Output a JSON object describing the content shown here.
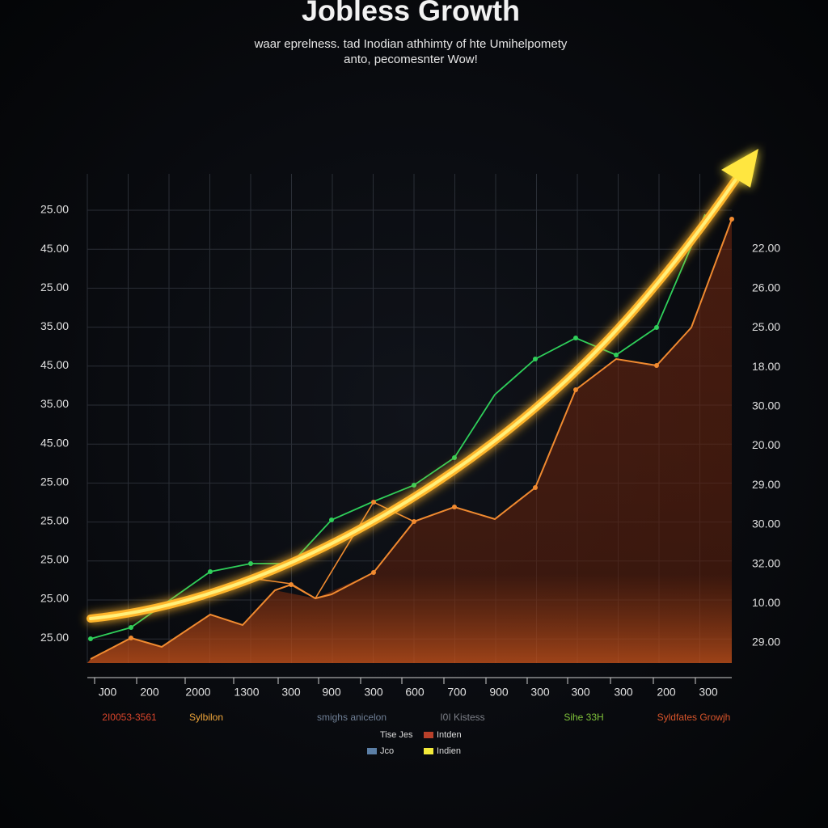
{
  "header": {
    "title": "Jobless Growth",
    "subtitle": [
      "waar eprelness. tad Inodian athhimty of hte Umihelpomety",
      "anto, pecomesnter Wow!"
    ]
  },
  "axes": {
    "left": [
      "25.00",
      "45.00",
      "25.00",
      "35.00",
      "45.00",
      "35.00",
      "45.00",
      "25.00",
      "25.00",
      "25.00",
      "25.00",
      "25.00"
    ],
    "right": [
      "22.00",
      "26.00",
      "25.00",
      "18.00",
      "30.00",
      "20.00",
      "29.00",
      "30.00",
      "32.00",
      "10.00",
      "29.00"
    ],
    "bottom": [
      "J00",
      "200",
      "2000",
      "1300",
      "300",
      "900",
      "300",
      "600",
      "700",
      "900",
      "300",
      "300",
      "300",
      "200",
      "300"
    ]
  },
  "series_labels": [
    {
      "label": "2I0053-3561",
      "color": "#d9452b"
    },
    {
      "label": "Sylbilon",
      "color": "#f0a63a"
    },
    {
      "label": "smighs anicelon",
      "color": "#6f7f95"
    },
    {
      "label": "I0I Kistess",
      "color": "#7d8088"
    },
    {
      "label": "Sihe 33H",
      "color": "#7fc23a"
    },
    {
      "label": "Syldfates Growjh",
      "color": "#d9552b"
    }
  ],
  "legend": [
    {
      "label": "Tise  Jes"
    },
    {
      "label": "Intden",
      "color": "#b8402a"
    },
    {
      "label": "Jco",
      "color": "#5b7fa6"
    },
    {
      "label": "Indien",
      "color": "#f3ea3a"
    }
  ]
}
